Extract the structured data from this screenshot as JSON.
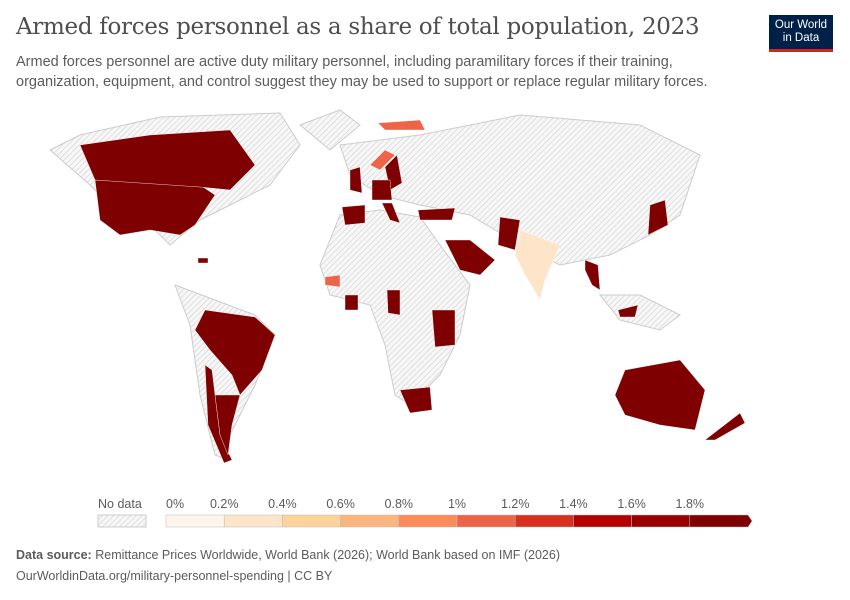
{
  "header": {
    "title": "Armed forces personnel as a share of total population, 2023",
    "subtitle": "Armed forces personnel are active duty military personnel, including paramilitary forces if their training, organization, equipment, and control suggest they may be used to support or replace regular military forces.",
    "logo": "Our World in Data"
  },
  "legend": {
    "no_data": "No data",
    "ticks": [
      "0%",
      "0.2%",
      "0.4%",
      "0.6%",
      "0.8%",
      "1%",
      "1.2%",
      "1.4%",
      "1.6%",
      "1.8%"
    ],
    "colors": [
      "#fff5eb",
      "#fee5c9",
      "#fdd39b",
      "#fcb57d",
      "#fb8c58",
      "#ee6448",
      "#d7301f",
      "#b50000",
      "#990000",
      "#7f0000"
    ],
    "no_data_color": "#e6e6e6"
  },
  "chart_data": {
    "type": "choropleth",
    "year": 2023,
    "unit": "%",
    "scale_min": 0,
    "scale_max": 2,
    "countries": [
      {
        "name": "United States",
        "value": 2.0
      },
      {
        "name": "Canada",
        "value": 2.0
      },
      {
        "name": "Brazil",
        "value": 2.0
      },
      {
        "name": "Chile",
        "value": 2.0
      },
      {
        "name": "Argentina",
        "value": 2.0
      },
      {
        "name": "Australia",
        "value": 2.0
      },
      {
        "name": "New Zealand",
        "value": 2.0
      },
      {
        "name": "India",
        "value": 0.3
      },
      {
        "name": "Norway",
        "value": 1.1
      },
      {
        "name": "Senegal",
        "value": 1.1
      },
      {
        "name": "Sweden",
        "value": 2.0
      },
      {
        "name": "United Kingdom",
        "value": 2.0
      },
      {
        "name": "Spain",
        "value": 2.0
      },
      {
        "name": "Germany",
        "value": 2.0
      },
      {
        "name": "Italy",
        "value": 2.0
      },
      {
        "name": "Turkey",
        "value": 2.0
      },
      {
        "name": "Saudi Arabia",
        "value": 2.0
      },
      {
        "name": "Pakistan",
        "value": 2.0
      },
      {
        "name": "Thailand",
        "value": 2.0
      },
      {
        "name": "Japan",
        "value": 2.0
      },
      {
        "name": "South Africa",
        "value": 2.0
      },
      {
        "name": "Kenya",
        "value": 2.0
      },
      {
        "name": "Cote d'Ivoire",
        "value": 2.0
      },
      {
        "name": "Cameroon",
        "value": 2.0
      },
      {
        "name": "Malaysia",
        "value": 2.0
      },
      {
        "name": "Dominican Republic",
        "value": 2.0
      }
    ]
  },
  "footer": {
    "source_label": "Data source:",
    "source": "Remittance Prices Worldwide, World Bank (2026); World Bank based on IMF (2026)",
    "url": "OurWorldinData.org/military-personnel-spending | CC BY"
  }
}
